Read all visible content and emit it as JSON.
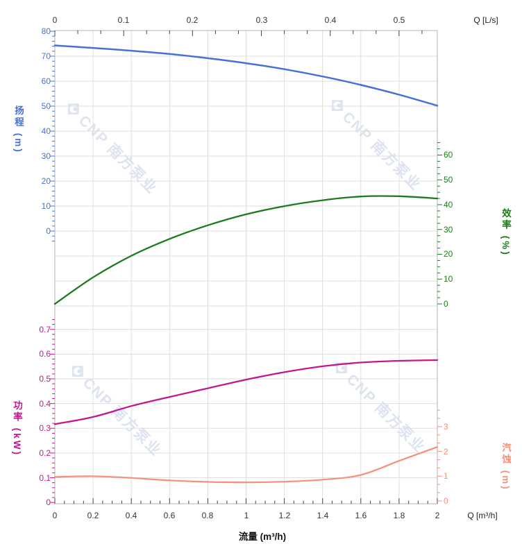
{
  "watermark": {
    "text": "CNP 南方泵业"
  },
  "axes": {
    "top": {
      "unit_label": "Q [L/s]",
      "ticks": [
        "0",
        "0.1",
        "0.2",
        "0.3",
        "0.4",
        "0.5"
      ]
    },
    "bottom": {
      "unit_label": "Q [m³/h]",
      "title": "流量 (m³/h)",
      "ticks": [
        "0",
        "0.2",
        "0.4",
        "0.6",
        "0.8",
        "1",
        "1.2",
        "1.4",
        "1.6",
        "1.8",
        "2"
      ]
    },
    "head": {
      "title": "扬程 (m)",
      "color": "#4671d8",
      "ticks": [
        "80",
        "70",
        "60",
        "50",
        "40",
        "30",
        "20",
        "10",
        "0"
      ]
    },
    "efficiency": {
      "title": "效率 (%)",
      "color": "#1a7c1a",
      "ticks": [
        "60",
        "50",
        "40",
        "30",
        "20",
        "10",
        "0"
      ]
    },
    "power": {
      "title": "功率 (kW)",
      "color": "#c2188f",
      "ticks": [
        "0.7",
        "0.6",
        "0.5",
        "0.4",
        "0.3",
        "0.2",
        "0.1",
        "0"
      ]
    },
    "npsh": {
      "title": "汽蚀 (m)",
      "color": "#f4907b",
      "ticks": [
        "3",
        "2",
        "1",
        "0"
      ]
    }
  },
  "chart_data": {
    "type": "line",
    "title": "",
    "xlabel": "流量 (m³/h)",
    "x_axis_top_label": "Q [L/s]",
    "x_axis_bottom_label": "Q [m³/h]",
    "x": [
      0,
      0.2,
      0.4,
      0.6,
      0.8,
      1.0,
      1.2,
      1.4,
      1.6,
      1.8,
      2.0
    ],
    "xlim": [
      0,
      2
    ],
    "x_top_ticks_Ls": [
      0,
      0.1,
      0.2,
      0.3,
      0.4,
      0.5
    ],
    "grid": true,
    "legend": "none",
    "series": [
      {
        "id": "head",
        "name": "扬程",
        "unit": "m",
        "color": "#4671d8",
        "ylim": [
          0,
          80
        ],
        "values": [
          74.3,
          73.3,
          72.2,
          70.9,
          69.2,
          67.2,
          64.8,
          61.9,
          58.5,
          54.6,
          50.2
        ]
      },
      {
        "id": "eff",
        "name": "效率",
        "unit": "%",
        "color": "#1a7c1a",
        "ylim": [
          0,
          60
        ],
        "values": [
          0,
          10.7,
          19.4,
          26.2,
          31.7,
          36.1,
          39.4,
          41.8,
          43.3,
          43.4,
          42.5
        ]
      },
      {
        "id": "power",
        "name": "功率",
        "unit": "kW",
        "color": "#c2188f",
        "ylim": [
          0,
          0.7
        ],
        "values": [
          0.317,
          0.346,
          0.39,
          0.427,
          0.462,
          0.497,
          0.527,
          0.551,
          0.566,
          0.573,
          0.576
        ]
      },
      {
        "id": "npsh",
        "name": "汽蚀",
        "unit": "m",
        "color": "#f4907b",
        "ylim": [
          0,
          3
        ],
        "values": [
          0.97,
          1.0,
          0.93,
          0.83,
          0.77,
          0.75,
          0.78,
          0.86,
          1.05,
          1.62,
          2.18
        ]
      }
    ]
  }
}
